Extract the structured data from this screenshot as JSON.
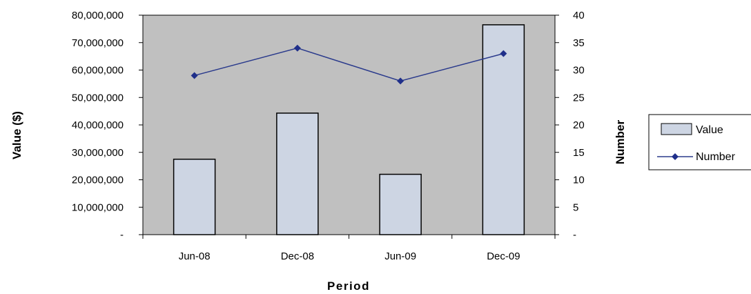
{
  "chart_data": {
    "type": "bar",
    "categories": [
      "Jun-08",
      "Dec-08",
      "Jun-09",
      "Dec-09"
    ],
    "series": [
      {
        "name": "Value",
        "type": "bar",
        "axis": "left",
        "values": [
          27500000,
          44300000,
          22000000,
          76500000
        ]
      },
      {
        "name": "Number",
        "type": "line",
        "axis": "right",
        "values": [
          29,
          34,
          28,
          33
        ]
      }
    ],
    "xlabel": "Period",
    "ylabel": "Value ($)",
    "y2label": "Number",
    "ylim": [
      0,
      80000000
    ],
    "y2lim": [
      0,
      40
    ],
    "y_ticks": [
      "-",
      "10,000,000",
      "20,000,000",
      "30,000,000",
      "40,000,000",
      "50,000,000",
      "60,000,000",
      "70,000,000",
      "80,000,000"
    ],
    "y2_ticks": [
      "-",
      "5",
      "10",
      "15",
      "20",
      "25",
      "30",
      "35",
      "40"
    ],
    "legend_position": "right",
    "grid": false,
    "colors": {
      "plot_background": "#c0c0c0",
      "bar_fill": "#cdd5e3",
      "bar_stroke": "#000000",
      "line": "#2a3a8c",
      "marker": "#1f2f8a"
    }
  }
}
